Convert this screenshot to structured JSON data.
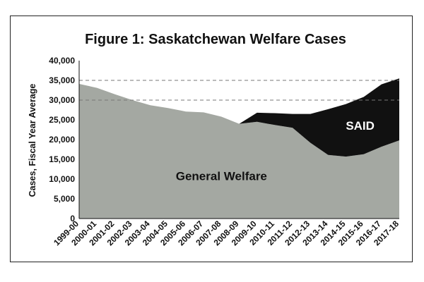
{
  "chart_data": {
    "type": "area",
    "title": "Figure 1: Saskatchewan Welfare Cases",
    "ylabel": "Cases, Fiscal Year Average",
    "xlabel": "",
    "ylim": [
      0,
      40000
    ],
    "yticks": [
      0,
      5000,
      10000,
      15000,
      20000,
      25000,
      30000,
      35000,
      40000
    ],
    "ytick_labels": [
      "0",
      "5,000",
      "10,000",
      "15,000",
      "20,000",
      "25,000",
      "30,000",
      "35,000",
      "40,000"
    ],
    "reference_lines": [
      30000,
      35000
    ],
    "stacked": true,
    "categories": [
      "1999-00",
      "2000-01",
      "2001-02",
      "2002-03",
      "2003-04",
      "2004-05",
      "2005-06",
      "2006-07",
      "2007-08",
      "2008-09",
      "2009-10",
      "2010-11",
      "2011-12",
      "2012-13",
      "2013-14",
      "2014-15",
      "2015-16",
      "2016-17",
      "2017-18"
    ],
    "series": [
      {
        "name": "General Welfare",
        "color": "#a4a8a2",
        "values": [
          34100,
          33100,
          31500,
          30000,
          28700,
          28000,
          27100,
          26900,
          25800,
          24000,
          24500,
          23700,
          23000,
          19200,
          16100,
          15700,
          16300,
          18200,
          19800
        ]
      },
      {
        "name": "SAID",
        "color": "#111111",
        "values": [
          0,
          0,
          0,
          0,
          0,
          0,
          0,
          0,
          0,
          0,
          2300,
          3000,
          3500,
          7300,
          11600,
          13300,
          14500,
          15800,
          15700
        ]
      }
    ],
    "annotations": [
      {
        "text": "General Welfare",
        "series": "General Welfare",
        "color": "#111111"
      },
      {
        "text": "SAID",
        "series": "SAID",
        "color": "#ffffff"
      }
    ],
    "grid": false
  }
}
